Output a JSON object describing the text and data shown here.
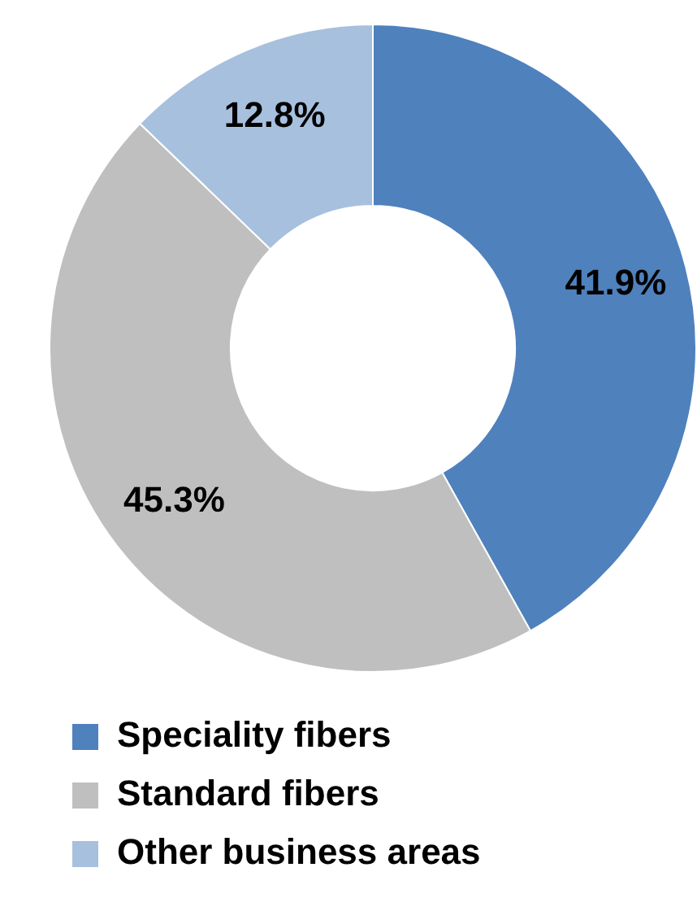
{
  "chart_data": {
    "type": "donut",
    "categories": [
      "Speciality fibers",
      "Standard fibers",
      "Other business areas"
    ],
    "values": [
      41.9,
      45.3,
      12.8
    ],
    "colors": [
      "#4f81bd",
      "#bfbfbf",
      "#a7c0de"
    ],
    "value_labels": [
      "41.9%",
      "45.3%",
      "12.8%"
    ],
    "legend": "bottom"
  }
}
